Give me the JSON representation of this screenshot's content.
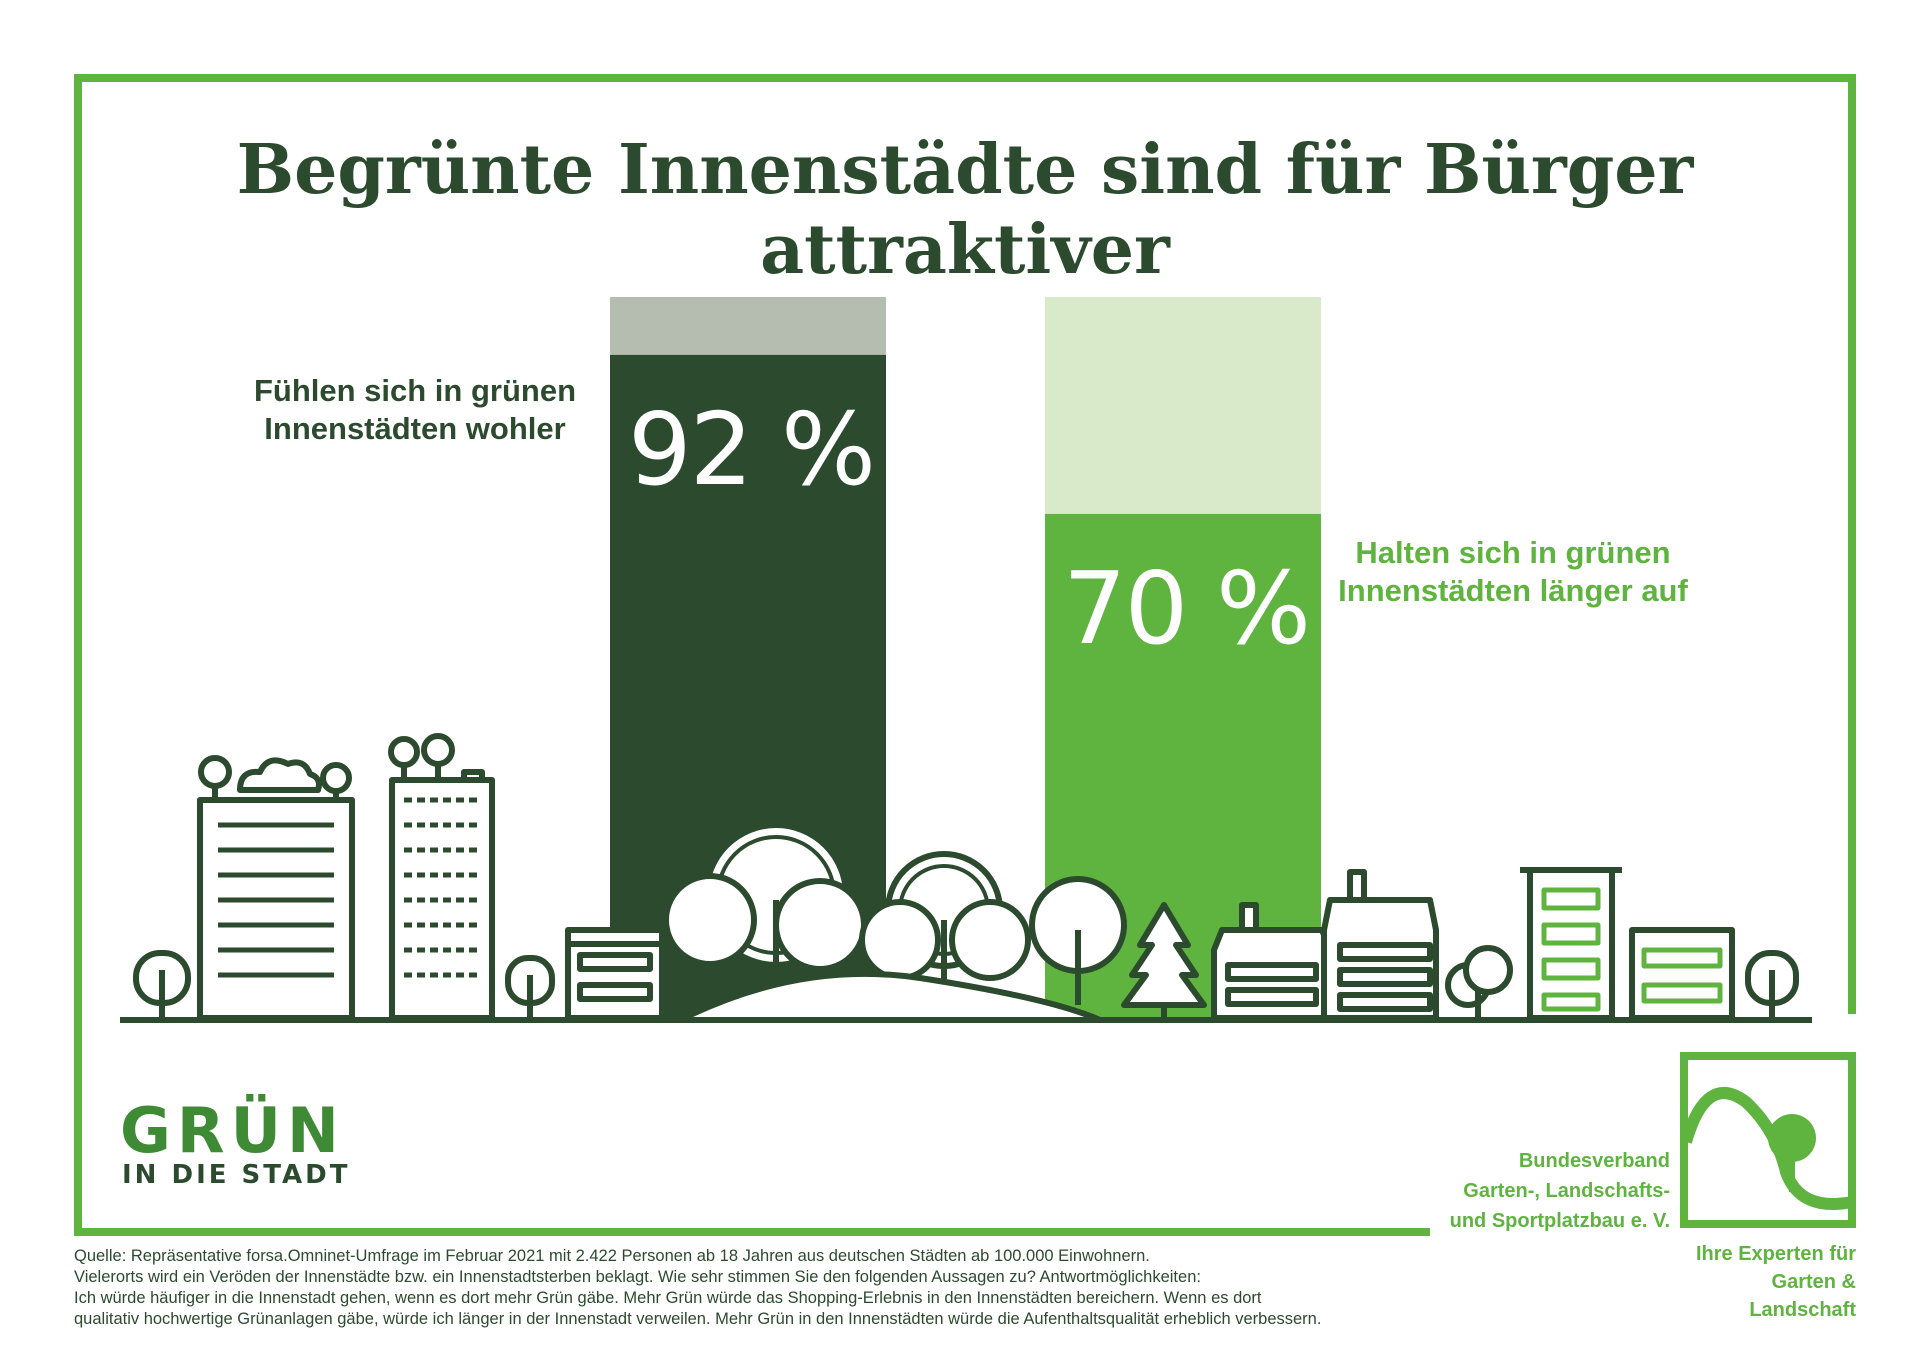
{
  "colors": {
    "dark_green": "#2c4a2e",
    "light_green": "#5fb33f",
    "grey_remainder": "#b5bdb0",
    "pale_remainder": "#d8eac9"
  },
  "chart_data": {
    "type": "bar",
    "title": "Begrünte Innenstädte sind für Bürger attraktiver",
    "ylim": [
      0,
      100
    ],
    "grid": false,
    "categories": [
      "Fühlen sich in grünen Innenstädten wohler",
      "Halten sich in grünen Innenstädten länger auf"
    ],
    "values": [
      92,
      70
    ],
    "value_labels": [
      "92 %",
      "70 %"
    ],
    "bar_colors": [
      "#2c4a2e",
      "#5fb33f"
    ],
    "remainder_colors": [
      "#b5bdb0",
      "#d8eac9"
    ]
  },
  "labels": {
    "left": "Fühlen sich in grünen Innenstädten wohler",
    "right": "Halten sich in grünen Innenstädten länger auf"
  },
  "logo": {
    "main": "GRÜN",
    "sub": "IN DIE STADT"
  },
  "org": {
    "name_line1": "Bundesverband",
    "name_line2": "Garten-, Landschafts-",
    "name_line3": "und Sportplatzbau e. V.",
    "tagline_line1": "Ihre Experten für",
    "tagline_line2": "Garten & Landschaft"
  },
  "source": {
    "line1": "Quelle: Repräsentative forsa.Omninet-Umfrage im Februar 2021 mit 2.422 Personen ab 18 Jahren aus deutschen Städten ab 100.000 Einwohnern.",
    "line2": "Vielerorts wird ein Veröden der Innenstädte bzw. ein Innenstadtsterben beklagt. Wie sehr stimmen Sie den folgenden Aussagen zu? Antwortmöglichkeiten:",
    "line3": "Ich würde häufiger in die Innenstadt gehen, wenn es dort mehr Grün gäbe. Mehr Grün würde das Shopping-Erlebnis in den Innenstädten bereichern. Wenn es dort",
    "line4": "qualitativ hochwertige Grünanlagen gäbe, würde ich länger in der Innenstadt verweilen. Mehr Grün in den Innenstädten würde die Aufenthaltsqualität erheblich verbessern."
  }
}
